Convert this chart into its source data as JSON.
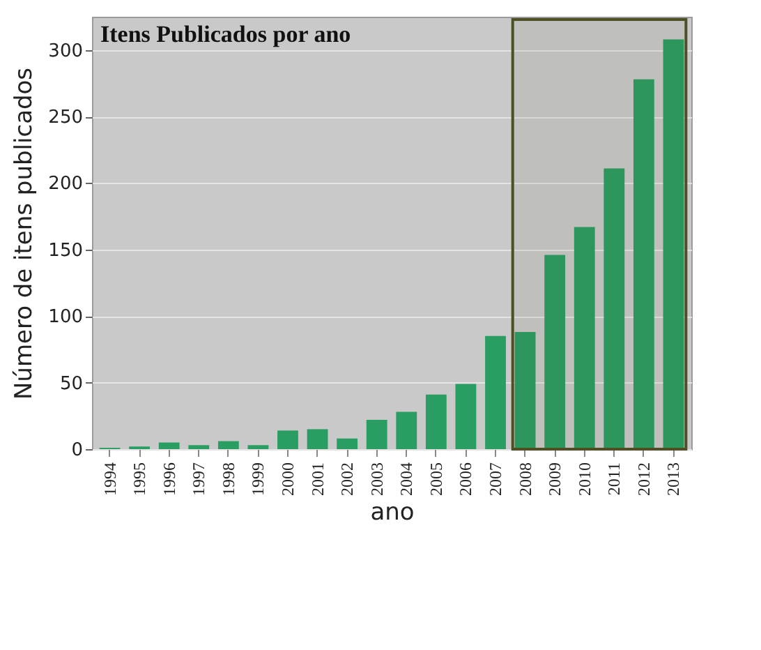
{
  "chart_data": {
    "type": "bar",
    "title": "Itens Publicados por ano",
    "xlabel": "ano",
    "ylabel": "Número de itens publicados",
    "categories": [
      "1994",
      "1995",
      "1996",
      "1997",
      "1998",
      "1999",
      "2000",
      "2001",
      "2002",
      "2003",
      "2004",
      "2005",
      "2006",
      "2007",
      "2008",
      "2009",
      "2010",
      "2011",
      "2012",
      "2013"
    ],
    "values": [
      1,
      2,
      5,
      3,
      6,
      3,
      14,
      15,
      8,
      22,
      28,
      41,
      49,
      85,
      88,
      146,
      167,
      211,
      278,
      308
    ],
    "color": "#2a9d62",
    "ylim": [
      0,
      325
    ],
    "yticks": [
      0,
      50,
      100,
      150,
      200,
      250,
      300
    ],
    "grid": "y",
    "bands": [
      {
        "axis": "x",
        "from": "2008",
        "to": "2013",
        "color": "#4f4f25"
      }
    ]
  }
}
